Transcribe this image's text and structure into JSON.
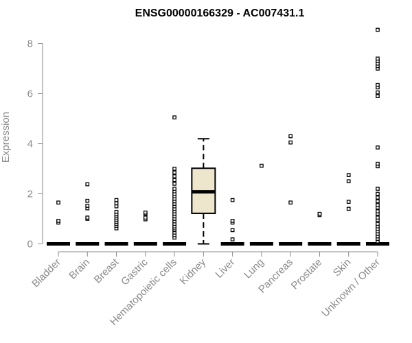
{
  "chart_data": {
    "type": "box",
    "title": "ENSG00000166329 - AC007431.1",
    "ylabel": "Expression",
    "xlabel": "",
    "ylim": [
      0,
      8.6
    ],
    "yticks": [
      0,
      2,
      4,
      6,
      8
    ],
    "grid": false,
    "legend": "none",
    "colors": {
      "box_fill": "#ede6cc",
      "median": "#000000",
      "outlier": "#000000",
      "axis": "#8a8a8a"
    },
    "categories": [
      "Bladder",
      "Brain",
      "Breast",
      "Gastric",
      "Hematopoietic cells",
      "Kidney",
      "Liver",
      "Lung",
      "Pancreas",
      "Prostate",
      "Skin",
      "Unknown / Other"
    ],
    "boxes": [
      {
        "category": "Bladder",
        "min": 0,
        "q1": 0,
        "median": 0,
        "q3": 0,
        "max": 0,
        "outliers": [
          0.85,
          0.92,
          1.65
        ]
      },
      {
        "category": "Brain",
        "min": 0,
        "q1": 0,
        "median": 0,
        "q3": 0,
        "max": 0,
        "outliers": [
          1.0,
          1.05,
          1.42,
          1.52,
          1.72,
          2.38
        ]
      },
      {
        "category": "Breast",
        "min": 0,
        "q1": 0,
        "median": 0,
        "q3": 0,
        "max": 0,
        "outliers": [
          0.62,
          0.72,
          0.8,
          0.88,
          0.95,
          1.02,
          1.1,
          1.18,
          1.28,
          1.5,
          1.62,
          1.75
        ]
      },
      {
        "category": "Gastric",
        "min": 0,
        "q1": 0,
        "median": 0,
        "q3": 0,
        "max": 0,
        "outliers": [
          0.98,
          1.05,
          1.2,
          1.25
        ]
      },
      {
        "category": "Hematopoietic cells",
        "min": 0,
        "q1": 0,
        "median": 0,
        "q3": 0,
        "max": 0,
        "outliers": [
          0.25,
          0.35,
          0.45,
          0.55,
          0.62,
          0.7,
          0.8,
          0.9,
          1.0,
          1.1,
          1.2,
          1.3,
          1.4,
          1.5,
          1.6,
          1.7,
          1.8,
          1.9,
          2.0,
          2.1,
          2.2,
          2.4,
          2.55,
          2.7,
          2.85,
          3.0,
          5.05
        ]
      },
      {
        "category": "Kidney",
        "min": 0,
        "q1": 1.22,
        "median": 2.08,
        "q3": 3.02,
        "max": 4.2,
        "outliers": []
      },
      {
        "category": "Liver",
        "min": 0,
        "q1": 0,
        "median": 0,
        "q3": 0,
        "max": 0,
        "outliers": [
          0.18,
          0.55,
          0.85,
          0.92,
          1.75
        ]
      },
      {
        "category": "Lung",
        "min": 0,
        "q1": 0,
        "median": 0,
        "q3": 0,
        "max": 0,
        "outliers": [
          3.12
        ]
      },
      {
        "category": "Pancreas",
        "min": 0,
        "q1": 0,
        "median": 0,
        "q3": 0,
        "max": 0,
        "outliers": [
          1.65,
          4.05,
          4.3
        ]
      },
      {
        "category": "Prostate",
        "min": 0,
        "q1": 0,
        "median": 0,
        "q3": 0,
        "max": 0,
        "outliers": [
          1.15,
          1.2
        ]
      },
      {
        "category": "Skin",
        "min": 0,
        "q1": 0,
        "median": 0,
        "q3": 0,
        "max": 0,
        "outliers": [
          1.4,
          1.68,
          2.5,
          2.75
        ]
      },
      {
        "category": "Unknown / Other",
        "min": 0,
        "q1": 0,
        "median": 0,
        "q3": 0,
        "max": 0,
        "outliers": [
          0.1,
          0.2,
          0.3,
          0.4,
          0.5,
          0.6,
          0.7,
          0.8,
          0.95,
          1.05,
          1.2,
          1.3,
          1.45,
          1.55,
          1.7,
          1.85,
          2.0,
          2.2,
          3.1,
          3.2,
          3.85,
          5.9,
          6.05,
          6.25,
          6.35,
          7.0,
          7.1,
          7.2,
          7.3,
          7.4,
          8.55
        ]
      }
    ]
  }
}
